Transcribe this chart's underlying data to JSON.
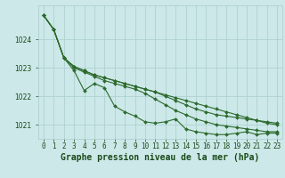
{
  "x": [
    0,
    1,
    2,
    3,
    4,
    5,
    6,
    7,
    8,
    9,
    10,
    11,
    12,
    13,
    14,
    15,
    16,
    17,
    18,
    19,
    20,
    21,
    22,
    23
  ],
  "series": [
    [
      1024.85,
      1024.35,
      1023.35,
      1022.9,
      1022.2,
      1022.45,
      1022.3,
      1021.65,
      1021.45,
      1021.3,
      1021.1,
      1021.05,
      1021.1,
      1021.2,
      1020.85,
      1020.75,
      1020.7,
      1020.65,
      1020.65,
      1020.7,
      1020.75,
      1020.65,
      1020.7,
      1020.7
    ],
    [
      1024.85,
      1024.35,
      1023.35,
      1023.0,
      1022.85,
      1022.7,
      1022.55,
      1022.45,
      1022.35,
      1022.25,
      1022.1,
      1021.9,
      1021.7,
      1021.5,
      1021.35,
      1021.2,
      1021.1,
      1021.0,
      1020.95,
      1020.9,
      1020.85,
      1020.8,
      1020.75,
      1020.75
    ],
    [
      1024.85,
      1024.35,
      1023.35,
      1023.05,
      1022.9,
      1022.75,
      1022.65,
      1022.55,
      1022.45,
      1022.35,
      1022.25,
      1022.15,
      1022.05,
      1021.95,
      1021.85,
      1021.75,
      1021.65,
      1021.55,
      1021.45,
      1021.35,
      1021.25,
      1021.15,
      1021.05,
      1021.0
    ],
    [
      1024.85,
      1024.35,
      1023.35,
      1023.05,
      1022.9,
      1022.75,
      1022.65,
      1022.55,
      1022.45,
      1022.35,
      1022.25,
      1022.15,
      1022.0,
      1021.85,
      1021.7,
      1021.55,
      1021.45,
      1021.35,
      1021.3,
      1021.25,
      1021.2,
      1021.15,
      1021.1,
      1021.05
    ]
  ],
  "line_color": "#2d6a2d",
  "marker": "D",
  "markersize": 2.0,
  "linewidth": 0.8,
  "title": "Graphe pression niveau de la mer (hPa)",
  "xlim": [
    -0.5,
    23.5
  ],
  "ylim": [
    1020.5,
    1025.2
  ],
  "yticks": [
    1021,
    1022,
    1023,
    1024
  ],
  "xtick_labels": [
    "0",
    "1",
    "2",
    "3",
    "4",
    "5",
    "6",
    "7",
    "8",
    "9",
    "10",
    "11",
    "12",
    "13",
    "14",
    "15",
    "16",
    "17",
    "18",
    "19",
    "20",
    "21",
    "22",
    "23"
  ],
  "bg_color": "#cce8e8",
  "grid_color": "#aacece",
  "text_color": "#1a4a1a",
  "title_fontsize": 7.0,
  "tick_fontsize": 5.5
}
